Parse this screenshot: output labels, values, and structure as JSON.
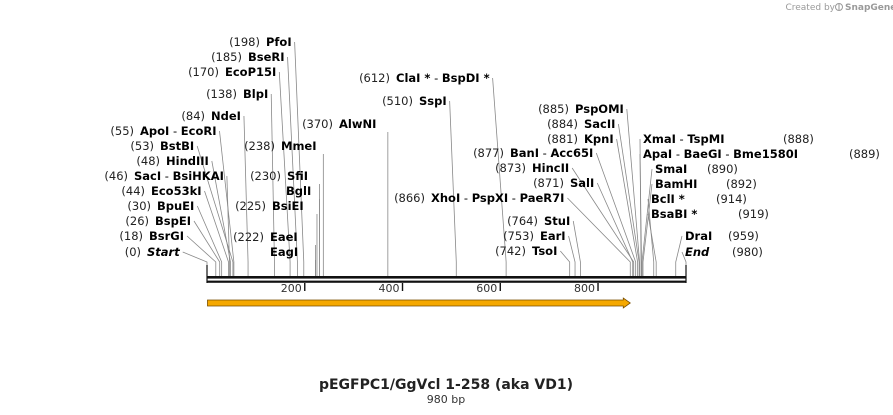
{
  "credit": {
    "prefix": "Created by",
    "brand": "SnapGene"
  },
  "map": {
    "title": "pEGFPC1/GgVcl 1-258 (aka VD1)",
    "length_label": "980 bp",
    "total_bp": 980,
    "ticks": [
      200,
      400,
      600,
      800
    ],
    "feature": {
      "start": 1,
      "end": 866,
      "color": "#f5a800"
    }
  },
  "sites_left": [
    {
      "pos": "(198)",
      "parts": [
        "PfoI"
      ],
      "bp": 198
    },
    {
      "pos": "(185)",
      "parts": [
        "BseRI"
      ],
      "bp": 185
    },
    {
      "pos": "(170)",
      "parts": [
        "EcoP15I"
      ],
      "bp": 170
    },
    {
      "pos": "(138)",
      "parts": [
        "BlpI"
      ],
      "bp": 138
    },
    {
      "pos": "(84)",
      "parts": [
        "NdeI"
      ],
      "bp": 84
    },
    {
      "pos": "(55)",
      "parts": [
        "ApoI",
        "EcoRI"
      ],
      "bp": 55
    },
    {
      "pos": "(53)",
      "parts": [
        "BstBI"
      ],
      "bp": 53
    },
    {
      "pos": "(48)",
      "parts": [
        "HindIII"
      ],
      "bp": 48
    },
    {
      "pos": "(46)",
      "parts": [
        "SacI",
        "BsiHKAI"
      ],
      "bp": 46
    },
    {
      "pos": "(44)",
      "parts": [
        "Eco53kI"
      ],
      "bp": 44
    },
    {
      "pos": "(30)",
      "parts": [
        "BpuEI"
      ],
      "bp": 30
    },
    {
      "pos": "(26)",
      "parts": [
        "BspEI"
      ],
      "bp": 26
    },
    {
      "pos": "(18)",
      "parts": [
        "BsrGI"
      ],
      "bp": 18
    },
    {
      "pos": "(0)",
      "parts": [
        "Start"
      ],
      "bp": 0,
      "italic": true
    }
  ],
  "sites_mid": [
    {
      "pos": "(370)",
      "parts": [
        "AlwNI"
      ],
      "bp": 370
    },
    {
      "pos": "(238)",
      "parts": [
        "MmeI"
      ],
      "bp": 238
    },
    {
      "pos": "(230)",
      "parts": [
        "SfiI"
      ],
      "bp": 230
    },
    {
      "pos": "",
      "parts": [
        "BglI"
      ],
      "bp": 230
    },
    {
      "pos": "(225)",
      "parts": [
        "BsiEI"
      ],
      "bp": 225
    },
    {
      "pos": "(222)",
      "parts": [
        "EaeI"
      ],
      "bp": 222
    },
    {
      "pos": "",
      "parts": [
        "EagI"
      ],
      "bp": 222
    }
  ],
  "sites_center": [
    {
      "pos": "(612)",
      "parts": [
        "ClaI *",
        "BspDI *"
      ],
      "bp": 612
    },
    {
      "pos": "(510)",
      "parts": [
        "SspI"
      ],
      "bp": 510
    },
    {
      "pos": "(877)",
      "parts": [
        "BanI",
        "Acc65I"
      ],
      "bp": 877
    },
    {
      "pos": "(873)",
      "parts": [
        "HincII"
      ],
      "bp": 873
    },
    {
      "pos": "(871)",
      "parts": [
        "SalI"
      ],
      "bp": 871
    },
    {
      "pos": "(866)",
      "parts": [
        "XhoI",
        "PspXI",
        "PaeR7I"
      ],
      "bp": 866
    },
    {
      "pos": "(764)",
      "parts": [
        "StuI"
      ],
      "bp": 764
    },
    {
      "pos": "(753)",
      "parts": [
        "EarI"
      ],
      "bp": 753
    },
    {
      "pos": "(742)",
      "parts": [
        "TsoI"
      ],
      "bp": 742
    }
  ],
  "sites_right_top": [
    {
      "pos": "(885)",
      "parts": [
        "PspOMI"
      ],
      "bp": 885
    },
    {
      "pos": "(884)",
      "parts": [
        "SacII"
      ],
      "bp": 884
    },
    {
      "pos": "(881)",
      "parts": [
        "KpnI"
      ],
      "bp": 881
    }
  ],
  "sites_right": [
    {
      "parts": [
        "XmaI",
        "TspMI"
      ],
      "pos": "(888)",
      "bp": 888
    },
    {
      "parts": [
        "ApaI",
        "BaeGI",
        "Bme1580I"
      ],
      "pos": "(889)",
      "bp": 889
    },
    {
      "parts": [
        "SmaI"
      ],
      "pos": "(890)",
      "bp": 890
    },
    {
      "parts": [
        "BamHI"
      ],
      "pos": "(892)",
      "bp": 892
    },
    {
      "parts": [
        "BclI *"
      ],
      "pos": "(914)",
      "bp": 914
    },
    {
      "parts": [
        "BsaBI *"
      ],
      "pos": "(919)",
      "bp": 919
    },
    {
      "parts": [
        "DraI"
      ],
      "pos": "(959)",
      "bp": 959
    },
    {
      "parts": [
        "End"
      ],
      "pos": "(980)",
      "bp": 980,
      "italic": true
    }
  ]
}
